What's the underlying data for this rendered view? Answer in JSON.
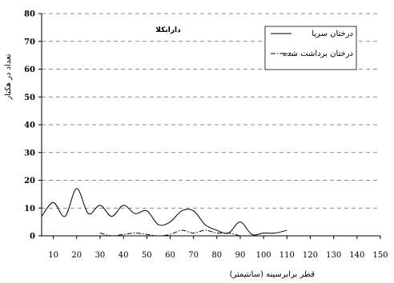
{
  "chart_data": {
    "type": "line",
    "title": "دارابکلا",
    "xlabel": "قطر برابرسینه (سانتیمتر)",
    "ylabel": "تعداد در هکتار",
    "xlim": [
      5,
      150
    ],
    "ylim": [
      0,
      80
    ],
    "xticks": [
      10,
      20,
      30,
      40,
      50,
      60,
      70,
      80,
      90,
      100,
      110,
      120,
      130,
      140,
      150
    ],
    "yticks": [
      0,
      10,
      20,
      30,
      40,
      50,
      60,
      70,
      80
    ],
    "grid": "horizontal-dashed",
    "legend_position": "top-right",
    "series": [
      {
        "name": "درختان سرپا",
        "style": "solid",
        "x": [
          5,
          10,
          15,
          20,
          25,
          30,
          35,
          40,
          45,
          50,
          55,
          60,
          65,
          70,
          75,
          80,
          85,
          90,
          95,
          100,
          105,
          110
        ],
        "y": [
          7,
          12,
          7,
          17,
          8,
          11,
          7,
          11,
          8,
          9,
          4,
          5,
          9,
          9,
          4,
          2,
          1,
          5,
          0.5,
          1,
          1,
          2
        ]
      },
      {
        "name": "درختان برداشت شده",
        "style": "dash-dot",
        "x": [
          30,
          35,
          40,
          45,
          50,
          55,
          60,
          65,
          70,
          75,
          80,
          85,
          90
        ],
        "y": [
          1,
          0,
          0.5,
          1,
          0.5,
          0,
          0.5,
          2,
          1,
          2,
          1,
          1,
          0
        ]
      }
    ]
  }
}
